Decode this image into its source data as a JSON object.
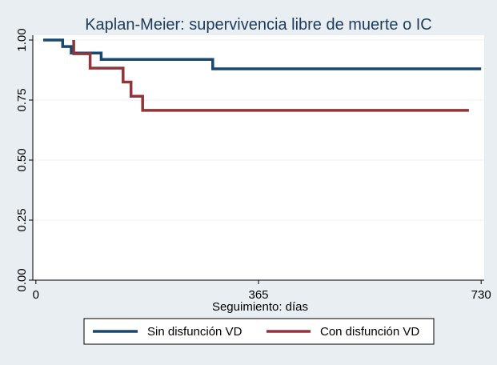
{
  "chart_data": {
    "type": "line",
    "step": true,
    "title": "Kaplan-Meier: supervivencia libre de muerte o IC",
    "xlabel": "Seguimiento: días",
    "ylabel": "",
    "xlim": [
      -5,
      735
    ],
    "ylim": [
      0,
      1.02
    ],
    "x_ticks": [
      0,
      365,
      730
    ],
    "x_tick_labels": [
      "0",
      "365",
      "730"
    ],
    "y_ticks": [
      0,
      0.25,
      0.5,
      0.75,
      1.0
    ],
    "y_tick_labels": [
      "0.00",
      "0.25",
      "0.50",
      "0.75",
      "1.00"
    ],
    "grid": true,
    "legend_position": "bottom",
    "series": [
      {
        "name": "Sin disfunción VD",
        "color": "#1a476f",
        "points": [
          [
            12,
            1.0
          ],
          [
            44,
            1.0
          ],
          [
            44,
            0.973
          ],
          [
            58,
            0.973
          ],
          [
            58,
            0.946
          ],
          [
            107,
            0.946
          ],
          [
            107,
            0.919
          ],
          [
            290,
            0.919
          ],
          [
            290,
            0.88
          ],
          [
            730,
            0.88
          ]
        ]
      },
      {
        "name": "Con disfunción VD",
        "color": "#90353b",
        "points": [
          [
            62,
            1.0
          ],
          [
            62,
            0.943
          ],
          [
            89,
            0.943
          ],
          [
            89,
            0.883
          ],
          [
            143,
            0.883
          ],
          [
            143,
            0.825
          ],
          [
            156,
            0.825
          ],
          [
            156,
            0.766
          ],
          [
            175,
            0.766
          ],
          [
            175,
            0.707
          ],
          [
            710,
            0.707
          ]
        ]
      }
    ]
  },
  "colors": {
    "background": "#e8eef2",
    "plot_background": "#ffffff",
    "grid": "#eaf2f3",
    "title": "#1e3c5a"
  }
}
